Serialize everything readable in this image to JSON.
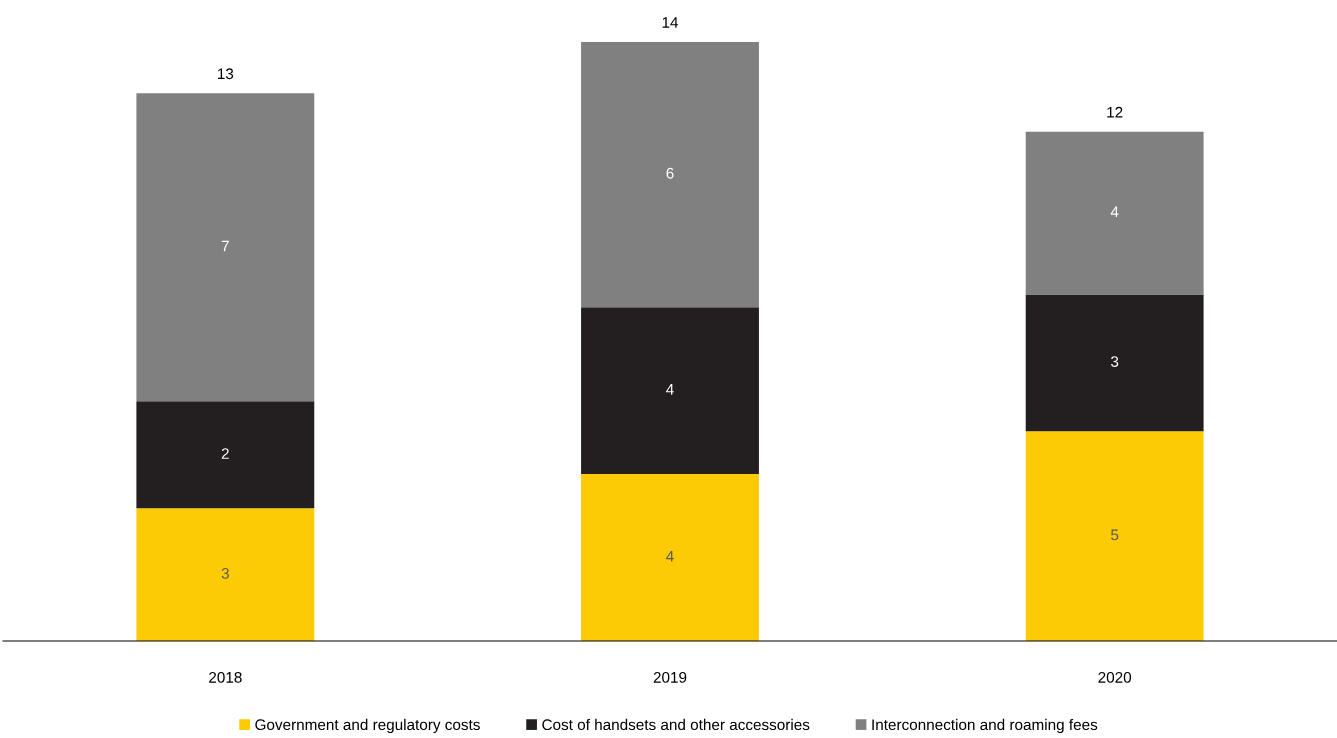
{
  "chart_data": {
    "type": "bar",
    "stacked": true,
    "categories": [
      "2018",
      "2019",
      "2020"
    ],
    "series": [
      {
        "name": "Government and regulatory costs",
        "color": "#fdcb06",
        "values": [
          3.1,
          3.9,
          4.9
        ],
        "value_labels": [
          "3",
          "4",
          "5"
        ]
      },
      {
        "name": "Cost of handsets and other accessories",
        "color": "#231f20",
        "values": [
          2.5,
          3.9,
          3.2
        ],
        "value_labels": [
          "2",
          "4",
          "3"
        ]
      },
      {
        "name": "Interconnection and roaming fees",
        "color": "#808080",
        "values": [
          7.2,
          6.2,
          3.8
        ],
        "value_labels": [
          "7",
          "6",
          "4"
        ]
      }
    ],
    "totals": [
      "13",
      "14",
      "12"
    ],
    "legend": "bottom",
    "grid": false
  }
}
